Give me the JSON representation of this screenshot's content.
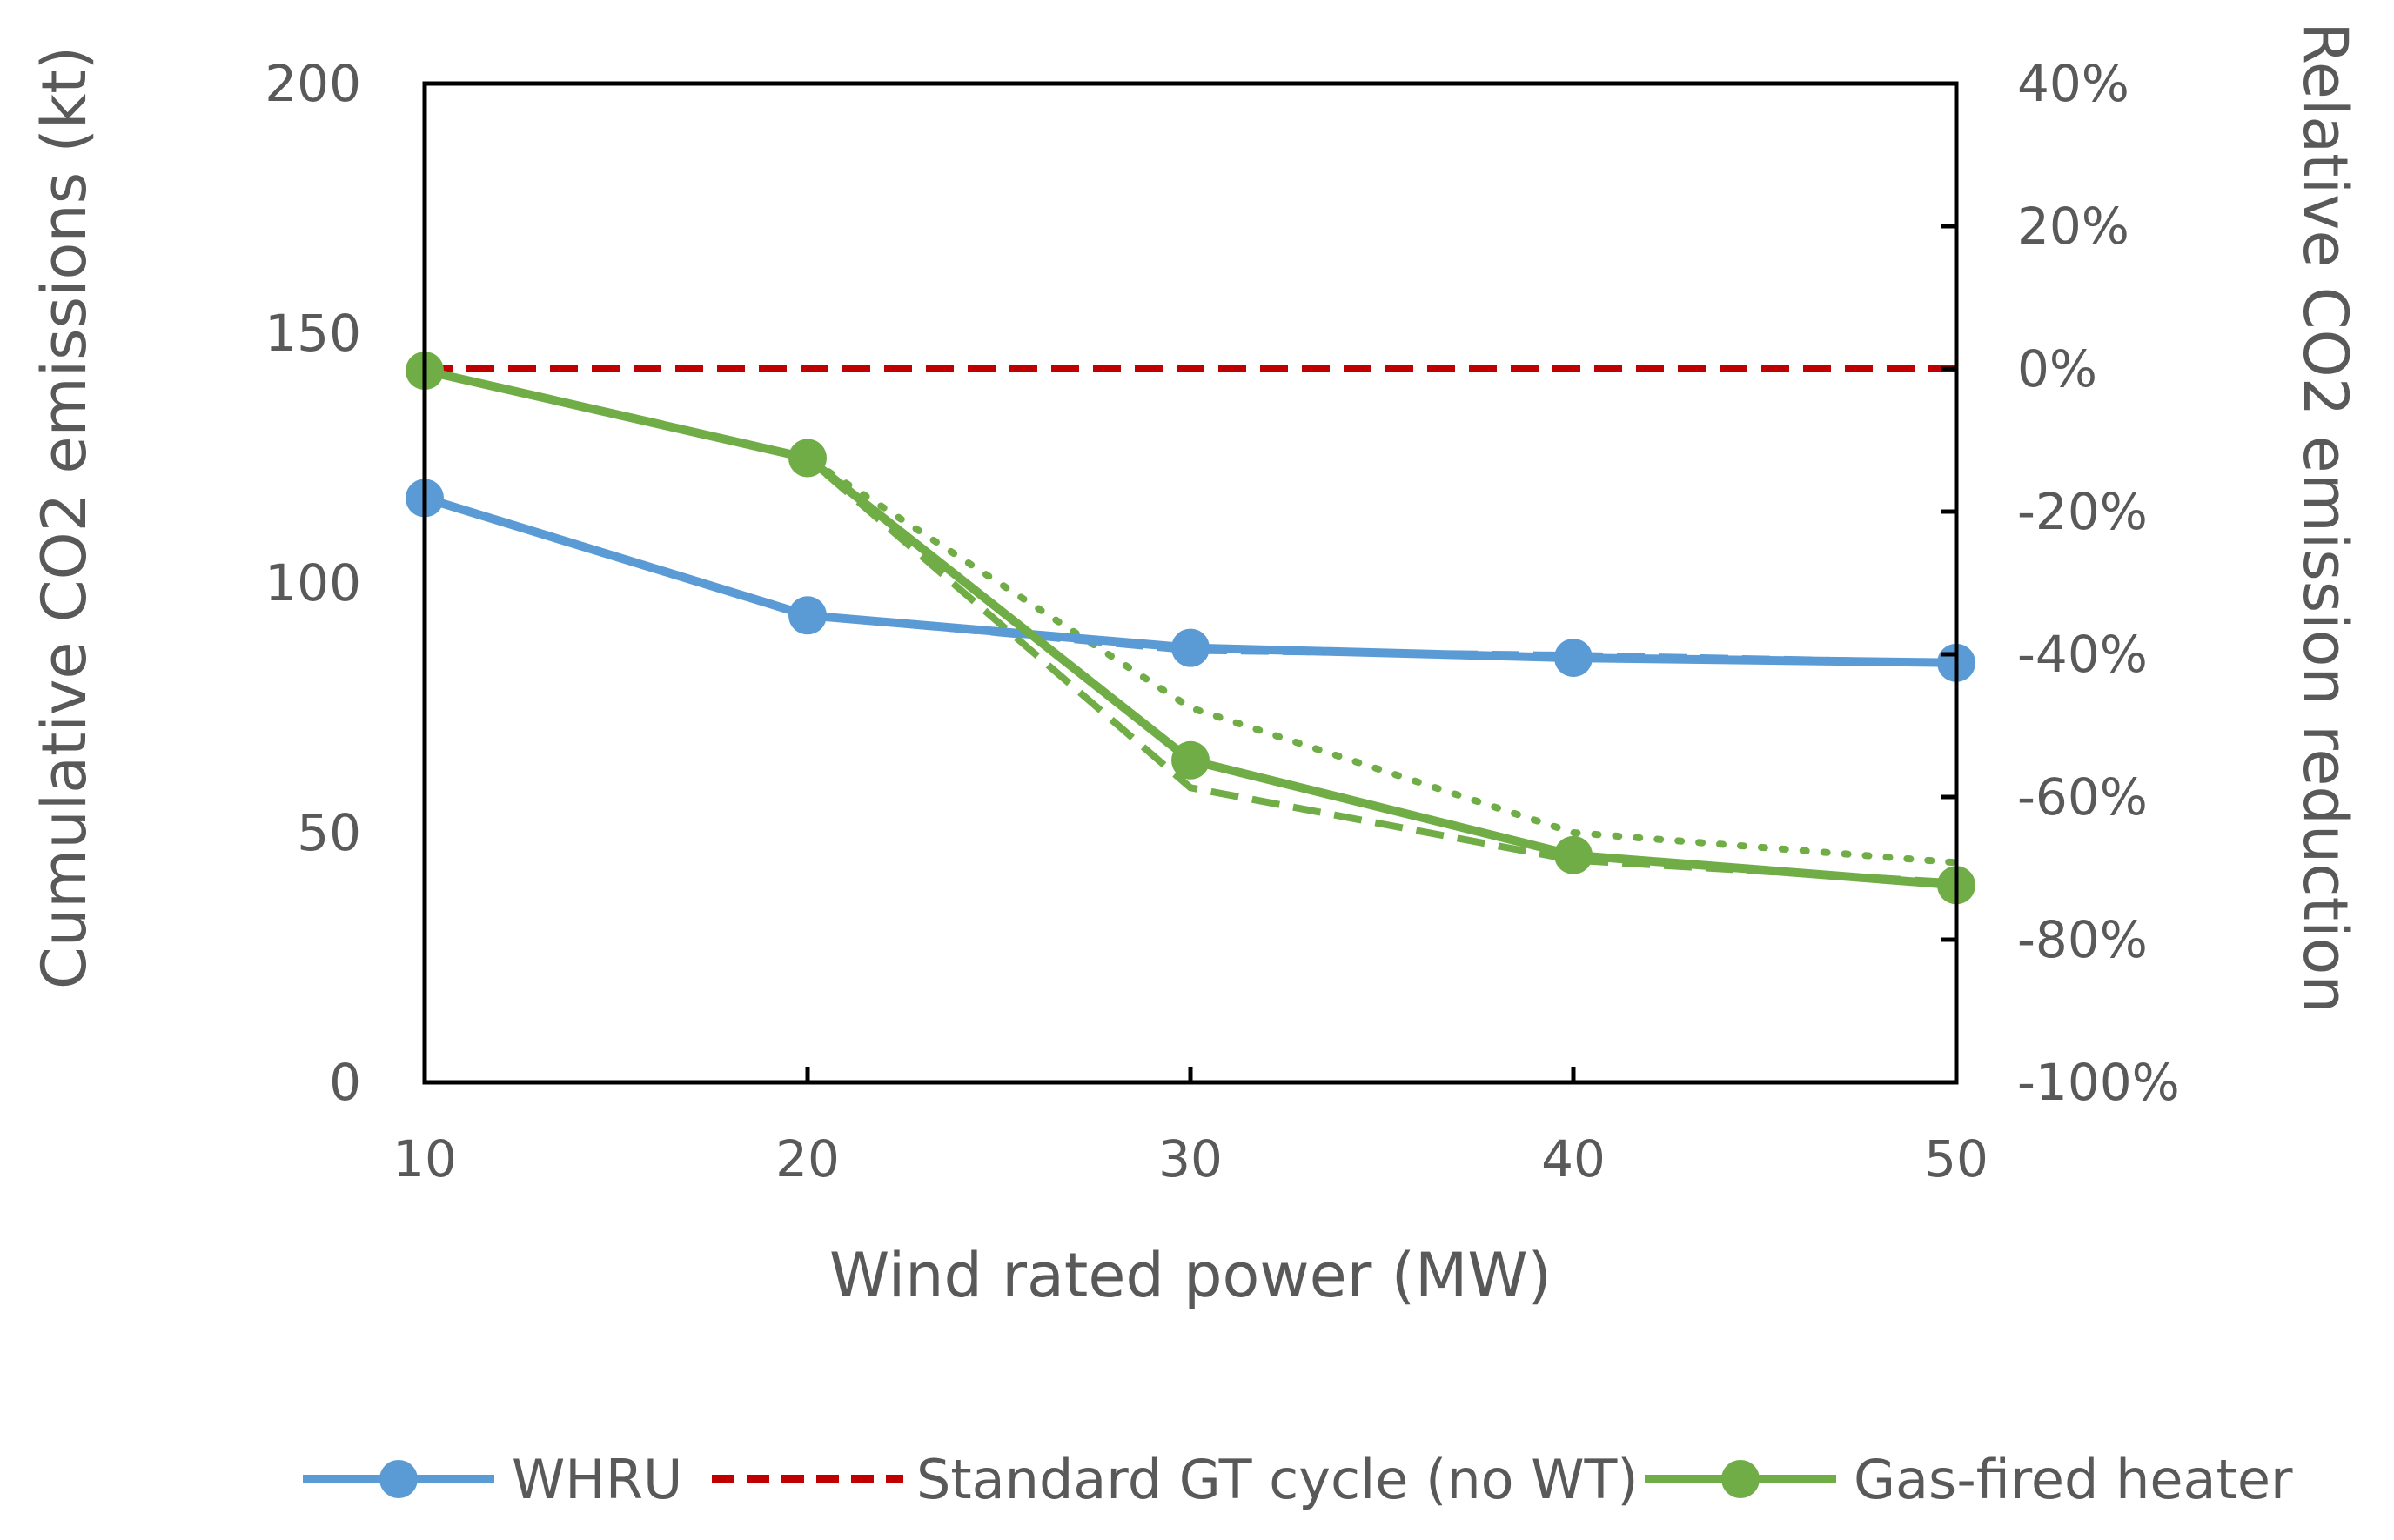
{
  "chart_data": {
    "type": "line",
    "title": "",
    "xlabel": "Wind rated power (MW)",
    "ylabel": "Cumulative CO2  emissions (kt)",
    "y2label": "Relative CO2 emission reduction",
    "x": [
      10,
      20,
      30,
      40,
      50
    ],
    "x_ticks": [
      "10",
      "20",
      "30",
      "40",
      "50"
    ],
    "xlim": [
      10,
      50
    ],
    "ylim": [
      0,
      200
    ],
    "y_ticks": [
      "0",
      "50",
      "100",
      "150",
      "200"
    ],
    "y2lim": [
      -100,
      40
    ],
    "y2_ticks": [
      "-100%",
      "-80%",
      "-60%",
      "-40%",
      "-20%",
      "0%",
      "20%",
      "40%"
    ],
    "grid": false,
    "legend_position": "bottom",
    "series": [
      {
        "name": "WHRU",
        "axis": "left",
        "style": "solid",
        "markers": true,
        "color": "#5B9BD5",
        "values": [
          117,
          93.5,
          87,
          85,
          84
        ],
        "in_legend": true
      },
      {
        "name": "Standard GT cycle (no WT)",
        "axis": "right",
        "style": "dashed",
        "markers": false,
        "color": "#C00000",
        "values": [
          0,
          0,
          0,
          0,
          0
        ],
        "in_legend": true
      },
      {
        "name": "Gas-fired heater",
        "axis": "left",
        "style": "solid",
        "markers": true,
        "color": "#70AD47",
        "values": [
          142.5,
          125,
          64.5,
          45.5,
          39.5
        ],
        "in_legend": true
      },
      {
        "name": "Gas-fired heater (dashed variant)",
        "axis": "left",
        "style": "dashed",
        "markers": false,
        "color": "#70AD47",
        "values": [
          142.5,
          125,
          59,
          44.5,
          40
        ],
        "in_legend": false
      },
      {
        "name": "Gas-fired heater (dotted variant)",
        "axis": "left",
        "style": "dotted",
        "markers": false,
        "color": "#70AD47",
        "values": [
          142.5,
          125,
          75,
          50,
          44
        ],
        "in_legend": false
      },
      {
        "name": "WHRU (dashed variant)",
        "axis": "left",
        "style": "dashed",
        "markers": false,
        "color": "#5B9BD5",
        "values": [
          117,
          93.5,
          86.5,
          85.5,
          84
        ],
        "in_legend": false
      }
    ]
  }
}
